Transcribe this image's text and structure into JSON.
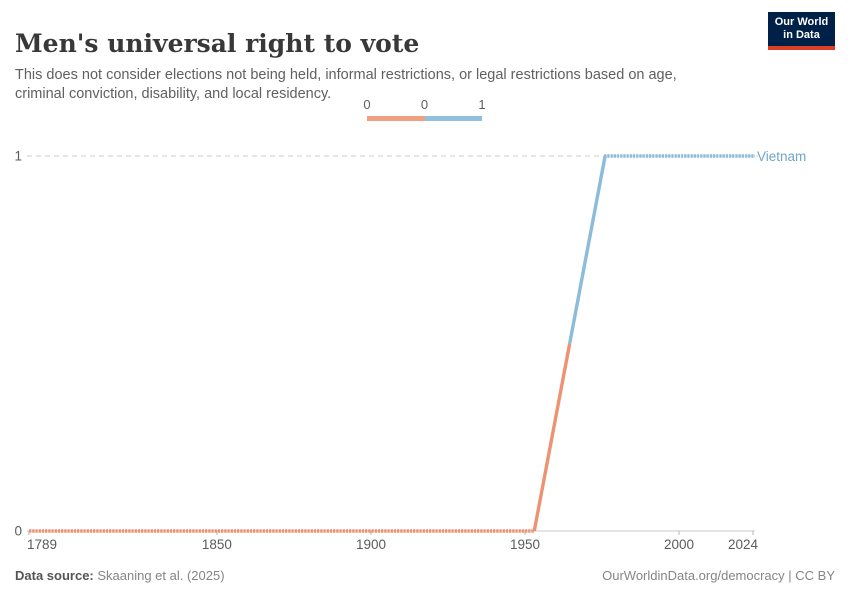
{
  "header": {
    "title": "Men's universal right to vote",
    "subtitle": "This does not consider elections not being held, informal restrictions, or legal restrictions based on age, criminal conviction, disability, and local residency.",
    "logo": {
      "line1": "Our World",
      "line2": "in Data"
    }
  },
  "legend": {
    "labels": [
      "0",
      "0",
      "1"
    ],
    "colors": {
      "zero": "#f0a080",
      "one": "#90c0dc"
    }
  },
  "chart_data": {
    "type": "line",
    "title": "Men's universal right to vote",
    "xlabel": "",
    "ylabel": "",
    "xlim": [
      1789,
      2024
    ],
    "ylim": [
      0,
      1
    ],
    "x_ticks": [
      "1789",
      "1850",
      "1900",
      "1950",
      "2000",
      "2024"
    ],
    "x_tick_years": [
      1789,
      1850,
      1900,
      1950,
      2000,
      2024
    ],
    "y_ticks": [
      "0",
      "1"
    ],
    "y_tick_values": [
      0,
      1
    ],
    "gridline_values": [
      1
    ],
    "grid": "dashed horizontal at y=1",
    "legend_position": "top-center color bar (orange=0, blue=1)",
    "series": [
      {
        "name": "Vietnam",
        "color_zero": "#ee9372",
        "color_one": "#8cbcda",
        "label_color": "#6da6c9",
        "points": [
          {
            "year": 1789,
            "value": 0
          },
          {
            "year": 1953,
            "value": 0
          },
          {
            "year": 1976,
            "value": 1
          },
          {
            "year": 2024,
            "value": 1
          }
        ]
      }
    ]
  },
  "footer": {
    "source_label": "Data source:",
    "source_value": " Skaaning et al. (2025)",
    "right_text": "OurWorldinData.org/democracy | CC BY"
  }
}
